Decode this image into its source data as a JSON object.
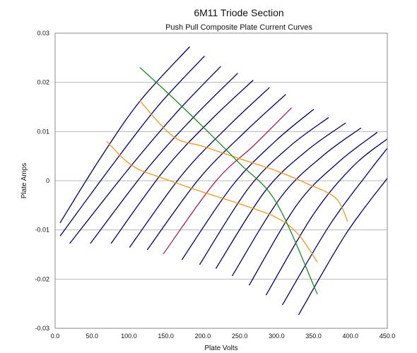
{
  "chart_data": {
    "type": "line",
    "title": "6M11 Triode Section",
    "subtitle": "Push Pull Composite Plate Current Curves",
    "xlabel": "Plate Volts",
    "ylabel": "Plate Amps",
    "xlim": [
      0,
      450
    ],
    "ylim": [
      -0.03,
      0.03
    ],
    "x_ticks": [
      0,
      50,
      100,
      150,
      200,
      250,
      300,
      350,
      400,
      450
    ],
    "x_tick_labels": [
      "0.0",
      "50.0",
      "100.0",
      "150.0",
      "200.0",
      "250.0",
      "300.0",
      "350.0",
      "400.0",
      "450.0"
    ],
    "y_ticks": [
      -0.03,
      -0.02,
      -0.01,
      0,
      0.01,
      0.02,
      0.03
    ],
    "y_tick_labels": [
      "-0.03",
      "-0.02",
      "-0.01",
      "0",
      "0.01",
      "0.02",
      "0.03"
    ],
    "grid": "horizontal",
    "legend": "none",
    "colors": {
      "curves": "#00006e",
      "highlight_curve": "#a5204b",
      "load_line": "#1a8c1a",
      "locus": "#f5961e",
      "grid": "#b8b8b8"
    },
    "series": [
      {
        "color": "#00006e",
        "points": [
          [
            7,
            -0.0085
          ],
          [
            60,
            0.0043
          ],
          [
            115,
            0.0162
          ],
          [
            182,
            0.0272
          ]
        ]
      },
      {
        "color": "#00006e",
        "points": [
          [
            7,
            -0.0112
          ],
          [
            78,
            0.0033
          ],
          [
            140,
            0.0153
          ],
          [
            202,
            0.0253
          ]
        ]
      },
      {
        "color": "#00006e",
        "points": [
          [
            20,
            -0.0127
          ],
          [
            100,
            0.0025
          ],
          [
            164,
            0.0138
          ],
          [
            224,
            0.0232
          ]
        ]
      },
      {
        "color": "#00006e",
        "points": [
          [
            48,
            -0.0127
          ],
          [
            124,
            0.0023
          ],
          [
            188,
            0.013
          ],
          [
            247,
            0.0218
          ]
        ]
      },
      {
        "color": "#00006e",
        "points": [
          [
            76,
            -0.0127
          ],
          [
            148,
            0.0022
          ],
          [
            210,
            0.0122
          ],
          [
            268,
            0.0204
          ]
        ]
      },
      {
        "color": "#00006e",
        "points": [
          [
            101,
            -0.0135
          ],
          [
            172,
            0.0012
          ],
          [
            234,
            0.011
          ],
          [
            290,
            0.0189
          ]
        ]
      },
      {
        "color": "#00006e",
        "points": [
          [
            125,
            -0.014
          ],
          [
            195,
            0.0004
          ],
          [
            257,
            0.0099
          ],
          [
            312,
            0.0175
          ]
        ]
      },
      {
        "color": "#a5204b",
        "points": [
          [
            147,
            -0.0148
          ],
          [
            217,
            -0.0002
          ],
          [
            270,
            0.0073
          ],
          [
            320,
            0.0148
          ]
        ]
      },
      {
        "color": "#00006e",
        "points": [
          [
            172,
            -0.016
          ],
          [
            240,
            -0.001
          ],
          [
            298,
            0.008
          ],
          [
            350,
            0.0145
          ]
        ]
      },
      {
        "color": "#00006e",
        "points": [
          [
            196,
            -0.017
          ],
          [
            262,
            -0.0015
          ],
          [
            318,
            0.007
          ],
          [
            370,
            0.0128
          ]
        ]
      },
      {
        "color": "#00006e",
        "points": [
          [
            218,
            -0.0178
          ],
          [
            284,
            -0.0022
          ],
          [
            340,
            0.006
          ],
          [
            393,
            0.0117
          ]
        ]
      },
      {
        "color": "#00006e",
        "points": [
          [
            240,
            -0.0193
          ],
          [
            306,
            -0.0033
          ],
          [
            362,
            0.005
          ],
          [
            414,
            0.0107
          ]
        ]
      },
      {
        "color": "#00006e",
        "points": [
          [
            263,
            -0.0212
          ],
          [
            328,
            -0.0048
          ],
          [
            384,
            0.0038
          ],
          [
            436,
            0.0098
          ]
        ]
      },
      {
        "color": "#00006e",
        "points": [
          [
            286,
            -0.0232
          ],
          [
            350,
            -0.0068
          ],
          [
            404,
            0.003
          ],
          [
            450,
            0.0085
          ]
        ]
      },
      {
        "color": "#00006e",
        "points": [
          [
            308,
            -0.0252
          ],
          [
            372,
            -0.009
          ],
          [
            426,
            0.002
          ],
          [
            450,
            0.0066
          ]
        ]
      },
      {
        "color": "#00006e",
        "points": [
          [
            330,
            -0.0272
          ],
          [
            394,
            -0.0108
          ],
          [
            450,
            0.0005
          ]
        ]
      },
      {
        "color": "#f5961e",
        "points": [
          [
            70,
            0.008
          ],
          [
            105,
            0.003
          ],
          [
            150,
            0.0003
          ],
          [
            200,
            -0.0023
          ],
          [
            250,
            -0.0047
          ],
          [
            300,
            -0.0075
          ],
          [
            330,
            -0.011
          ],
          [
            355,
            -0.0165
          ]
        ]
      },
      {
        "color": "#f5961e",
        "points": [
          [
            115,
            0.0162
          ],
          [
            160,
            0.009
          ],
          [
            200,
            0.007
          ],
          [
            250,
            0.0045
          ],
          [
            300,
            0.002
          ],
          [
            340,
            -0.0005
          ],
          [
            380,
            -0.0035
          ],
          [
            396,
            -0.0082
          ]
        ]
      },
      {
        "color": "#1a8c1a",
        "points": [
          [
            115,
            0.023
          ],
          [
            155,
            0.0175
          ],
          [
            200,
            0.011
          ],
          [
            250,
            0.0035
          ],
          [
            300,
            -0.0045
          ],
          [
            355,
            -0.023
          ]
        ]
      }
    ]
  }
}
